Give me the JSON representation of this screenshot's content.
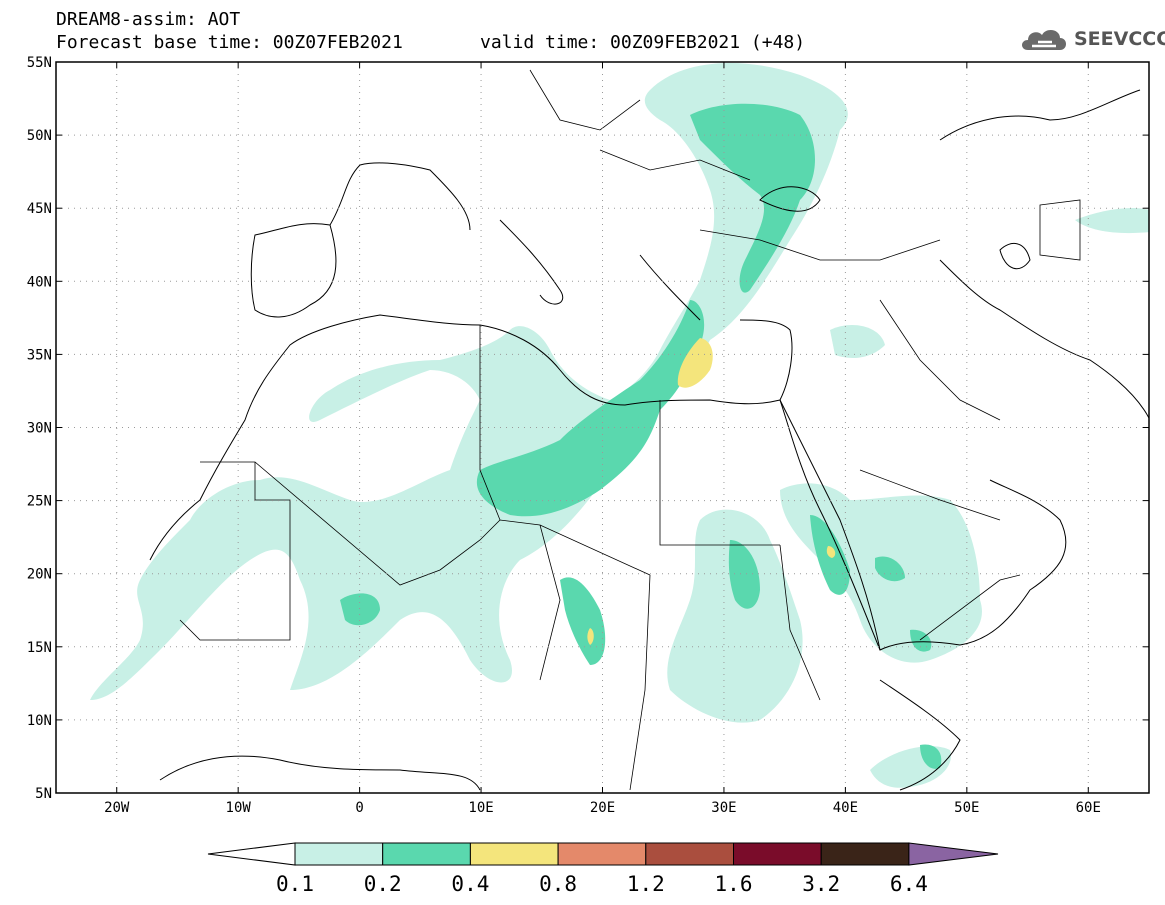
{
  "header": {
    "title_line1": "DREAM8-assim: AOT",
    "title_line2": "Forecast base time: 00Z07FEB2021",
    "valid_time": "valid time: 00Z09FEB2021 (+48)",
    "logo_text": "SEEVCCC",
    "logo_icon": "cloud-icon"
  },
  "axes": {
    "lat_labels": [
      "55N",
      "50N",
      "45N",
      "40N",
      "35N",
      "30N",
      "25N",
      "20N",
      "15N",
      "10N",
      "5N"
    ],
    "lon_labels": [
      "20W",
      "10W",
      "0",
      "10E",
      "20E",
      "30E",
      "40E",
      "50E",
      "60E"
    ],
    "lat_range": [
      5,
      55
    ],
    "lon_range": [
      -25,
      65
    ],
    "grid": "dotted"
  },
  "colorbar": {
    "labels": [
      "0.1",
      "0.2",
      "0.4",
      "0.8",
      "1.2",
      "1.6",
      "3.2",
      "6.4"
    ],
    "colors": [
      "#ffffff",
      "#c8f0e6",
      "#5ad8ae",
      "#f4e57c",
      "#e4896a",
      "#aa4e3e",
      "#7a0c2a",
      "#3a2418",
      "#8a64a2"
    ]
  }
}
